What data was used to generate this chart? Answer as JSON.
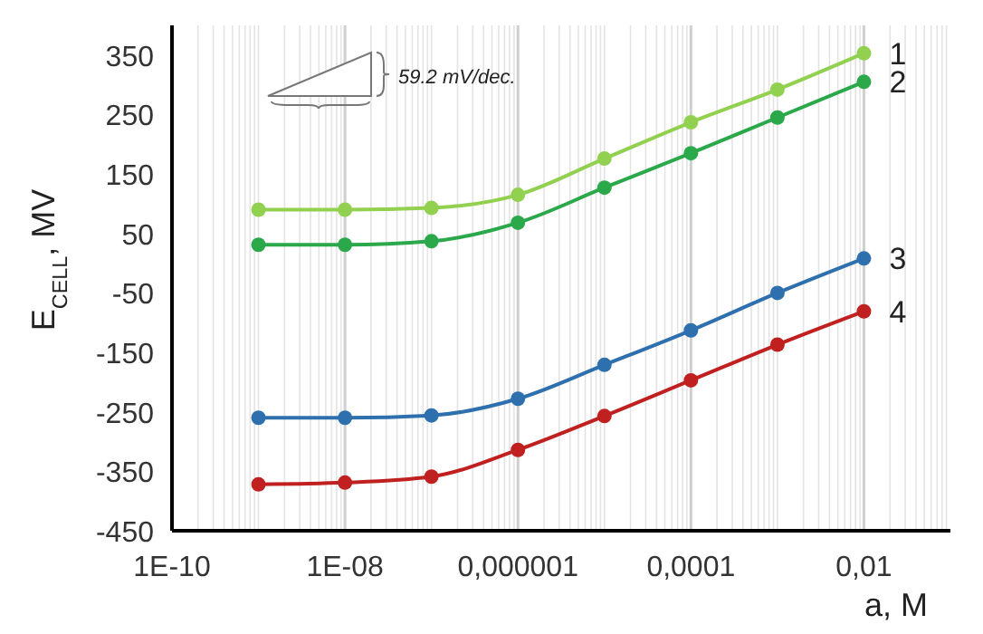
{
  "chart_data": {
    "type": "line",
    "ylabel": "E$_{CELL}$, MV",
    "xlabel": "a, M",
    "log": "x",
    "x": [
      1e-09,
      1e-08,
      1e-07,
      1e-06,
      1e-05,
      0.0001,
      0.001,
      0.01
    ],
    "series": [
      {
        "name": "1",
        "color": "#92d050",
        "values": [
          90,
          90,
          93,
          115,
          176,
          237,
          292,
          353
        ]
      },
      {
        "name": "2",
        "color": "#2aa84a",
        "values": [
          31,
          31,
          37,
          68,
          127,
          185,
          245,
          305
        ]
      },
      {
        "name": "3",
        "color": "#2e6fae",
        "values": [
          -260,
          -260,
          -256,
          -228,
          -171,
          -113,
          -50,
          8
        ]
      },
      {
        "name": "4",
        "color": "#c0201f",
        "values": [
          -372,
          -369,
          -359,
          -314,
          -257,
          -197,
          -137,
          -81
        ]
      }
    ],
    "xlim": [
      1e-10,
      0.1
    ],
    "xticks": [
      {
        "value": 1e-10,
        "label": "1E-10"
      },
      {
        "value": 1e-08,
        "label": "1E-08"
      },
      {
        "value": 1e-06,
        "label": "0,000001"
      },
      {
        "value": 0.0001,
        "label": "0,0001"
      },
      {
        "value": 0.01,
        "label": "0,01"
      }
    ],
    "ylim": [
      -450,
      400
    ],
    "yticks": [
      -450,
      -350,
      -250,
      -150,
      -50,
      50,
      150,
      250,
      350
    ],
    "grid": "x",
    "marker": "circle",
    "line_style": "solid",
    "annotations": [
      "59.2 mV/dec."
    ]
  }
}
